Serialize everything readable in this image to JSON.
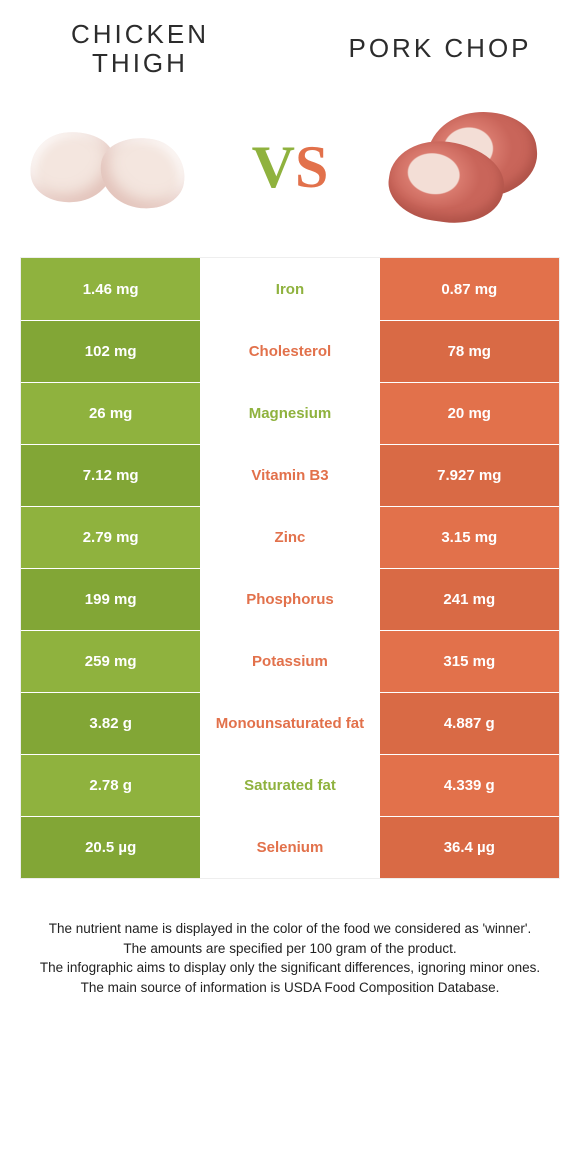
{
  "colors": {
    "green": "#8fb23e",
    "greenDark": "#82a636",
    "orange": "#e2714b",
    "orangeDark": "#d96a45",
    "background": "#ffffff",
    "text": "#2c2c2c"
  },
  "header": {
    "left_title": "Chicken thigh",
    "right_title": "Pork chop",
    "vs_v": "V",
    "vs_s": "S"
  },
  "rows": [
    {
      "nutrient": "Iron",
      "left": "1.46 mg",
      "right": "0.87 mg",
      "winner": "left"
    },
    {
      "nutrient": "Cholesterol",
      "left": "102 mg",
      "right": "78 mg",
      "winner": "right"
    },
    {
      "nutrient": "Magnesium",
      "left": "26 mg",
      "right": "20 mg",
      "winner": "left"
    },
    {
      "nutrient": "Vitamin B3",
      "left": "7.12 mg",
      "right": "7.927 mg",
      "winner": "right"
    },
    {
      "nutrient": "Zinc",
      "left": "2.79 mg",
      "right": "3.15 mg",
      "winner": "right"
    },
    {
      "nutrient": "Phosphorus",
      "left": "199 mg",
      "right": "241 mg",
      "winner": "right"
    },
    {
      "nutrient": "Potassium",
      "left": "259 mg",
      "right": "315 mg",
      "winner": "right"
    },
    {
      "nutrient": "Monounsaturated fat",
      "left": "3.82 g",
      "right": "4.887 g",
      "winner": "right"
    },
    {
      "nutrient": "Saturated fat",
      "left": "2.78 g",
      "right": "4.339 g",
      "winner": "left"
    },
    {
      "nutrient": "Selenium",
      "left": "20.5 µg",
      "right": "36.4 µg",
      "winner": "right"
    }
  ],
  "footer": {
    "line1": "The nutrient name is displayed in the color of the food we considered as 'winner'.",
    "line2": "The amounts are specified per 100 gram of the product.",
    "line3": "The infographic aims to display only the significant differences, ignoring minor ones.",
    "line4": "The main source of information is USDA Food Composition Database."
  }
}
